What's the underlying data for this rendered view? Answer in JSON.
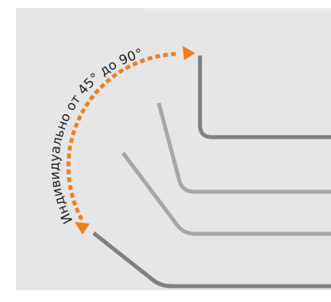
{
  "diagram": {
    "angle_label": "Индивидуально от 45° до 90°",
    "colors": {
      "panel_background": "#e6e6e7",
      "bend_dark": "#808080",
      "bend_light": "#a7a7a7",
      "arrow_accent": "#f07f1e",
      "label_text": "#222222"
    },
    "bends": [
      {
        "name": "bend-90-degree",
        "shade": "dark"
      },
      {
        "name": "bend-intermediate-steep",
        "shade": "light"
      },
      {
        "name": "bend-intermediate-shallow",
        "shade": "light"
      },
      {
        "name": "bend-45-degree",
        "shade": "dark"
      }
    ],
    "arrow": {
      "style": "dashed",
      "arrowheads": [
        "arrowhead-right-icon",
        "arrowhead-down-icon"
      ]
    }
  }
}
